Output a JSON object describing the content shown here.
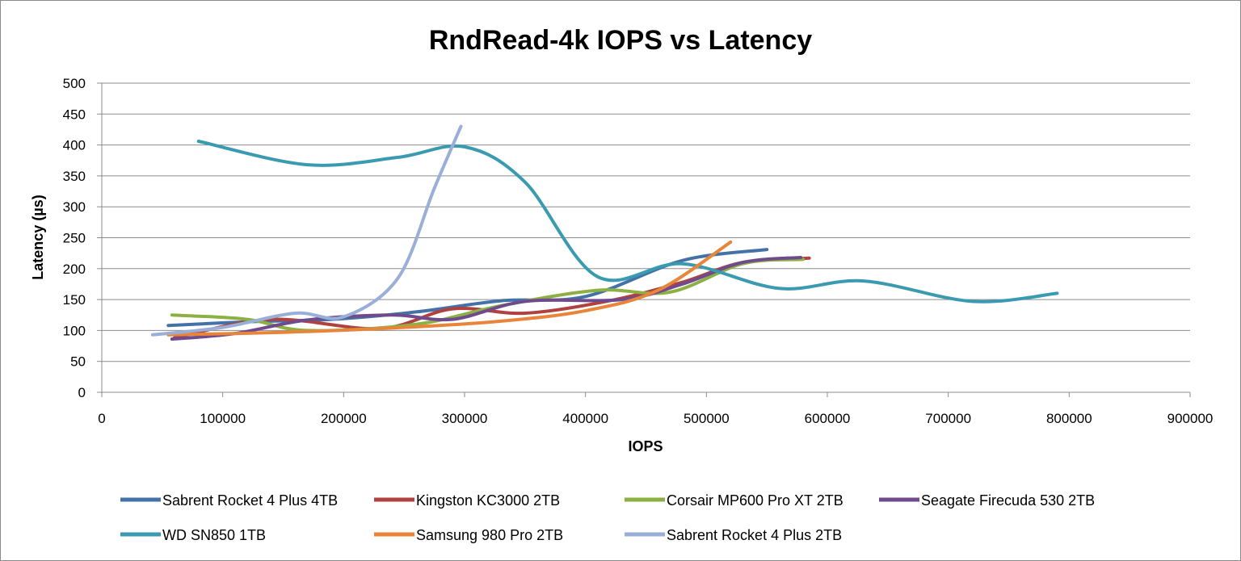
{
  "chart_data": {
    "type": "line",
    "title": "RndRead-4k IOPS vs Latency",
    "xlabel": "IOPS",
    "ylabel": "Latency (µs)",
    "xlim": [
      0,
      900000
    ],
    "ylim": [
      0,
      500
    ],
    "x_ticks": [
      0,
      100000,
      200000,
      300000,
      400000,
      500000,
      600000,
      700000,
      800000,
      900000
    ],
    "x_tick_labels": [
      "0",
      "100000",
      "200000",
      "300000",
      "400000",
      "500000",
      "600000",
      "700000",
      "800000",
      "900000"
    ],
    "y_ticks": [
      0,
      50,
      100,
      150,
      200,
      250,
      300,
      350,
      400,
      450,
      500
    ],
    "y_tick_labels": [
      "0",
      "50",
      "100",
      "150",
      "200",
      "250",
      "300",
      "350",
      "400",
      "450",
      "500"
    ],
    "grid": "horizontal",
    "legend": "bottom",
    "series": [
      {
        "name": "Sabrent Rocket 4 Plus 4TB",
        "color": "#4472a8",
        "points": [
          [
            55000,
            108
          ],
          [
            120000,
            114
          ],
          [
            190000,
            118
          ],
          [
            260000,
            130
          ],
          [
            330000,
            148
          ],
          [
            400000,
            155
          ],
          [
            480000,
            213
          ],
          [
            550000,
            231
          ]
        ]
      },
      {
        "name": "Kingston KC3000 2TB",
        "color": "#b0413e",
        "points": [
          [
            60000,
            88
          ],
          [
            140000,
            118
          ],
          [
            230000,
            103
          ],
          [
            290000,
            135
          ],
          [
            350000,
            128
          ],
          [
            420000,
            148
          ],
          [
            480000,
            178
          ],
          [
            530000,
            210
          ],
          [
            585000,
            217
          ]
        ]
      },
      {
        "name": "Corsair MP600 Pro XT 2TB",
        "color": "#8db043",
        "points": [
          [
            58000,
            125
          ],
          [
            120000,
            118
          ],
          [
            170000,
            100
          ],
          [
            260000,
            110
          ],
          [
            330000,
            140
          ],
          [
            410000,
            165
          ],
          [
            470000,
            162
          ],
          [
            530000,
            208
          ],
          [
            580000,
            215
          ]
        ]
      },
      {
        "name": "Seagate Firecuda 530 2TB",
        "color": "#6f4b8e",
        "points": [
          [
            58000,
            86
          ],
          [
            110000,
            95
          ],
          [
            170000,
            117
          ],
          [
            240000,
            125
          ],
          [
            290000,
            118
          ],
          [
            350000,
            147
          ],
          [
            430000,
            150
          ],
          [
            480000,
            175
          ],
          [
            530000,
            210
          ],
          [
            578000,
            218
          ]
        ]
      },
      {
        "name": "WD SN850 1TB",
        "color": "#3a9bb0",
        "points": [
          [
            80000,
            406
          ],
          [
            170000,
            368
          ],
          [
            245000,
            380
          ],
          [
            300000,
            397
          ],
          [
            350000,
            340
          ],
          [
            410000,
            187
          ],
          [
            480000,
            208
          ],
          [
            560000,
            168
          ],
          [
            630000,
            180
          ],
          [
            720000,
            147
          ],
          [
            790000,
            160
          ]
        ]
      },
      {
        "name": "Samsung 980 Pro 2TB",
        "color": "#e8853b",
        "points": [
          [
            55000,
            93
          ],
          [
            150000,
            97
          ],
          [
            250000,
            105
          ],
          [
            330000,
            115
          ],
          [
            400000,
            132
          ],
          [
            460000,
            165
          ],
          [
            520000,
            243
          ]
        ]
      },
      {
        "name": "Sabrent Rocket 4 Plus 2TB",
        "color": "#9aafd8",
        "points": [
          [
            42000,
            93
          ],
          [
            100000,
            105
          ],
          [
            160000,
            128
          ],
          [
            200000,
            122
          ],
          [
            245000,
            185
          ],
          [
            275000,
            330
          ],
          [
            297000,
            430
          ]
        ]
      }
    ]
  }
}
